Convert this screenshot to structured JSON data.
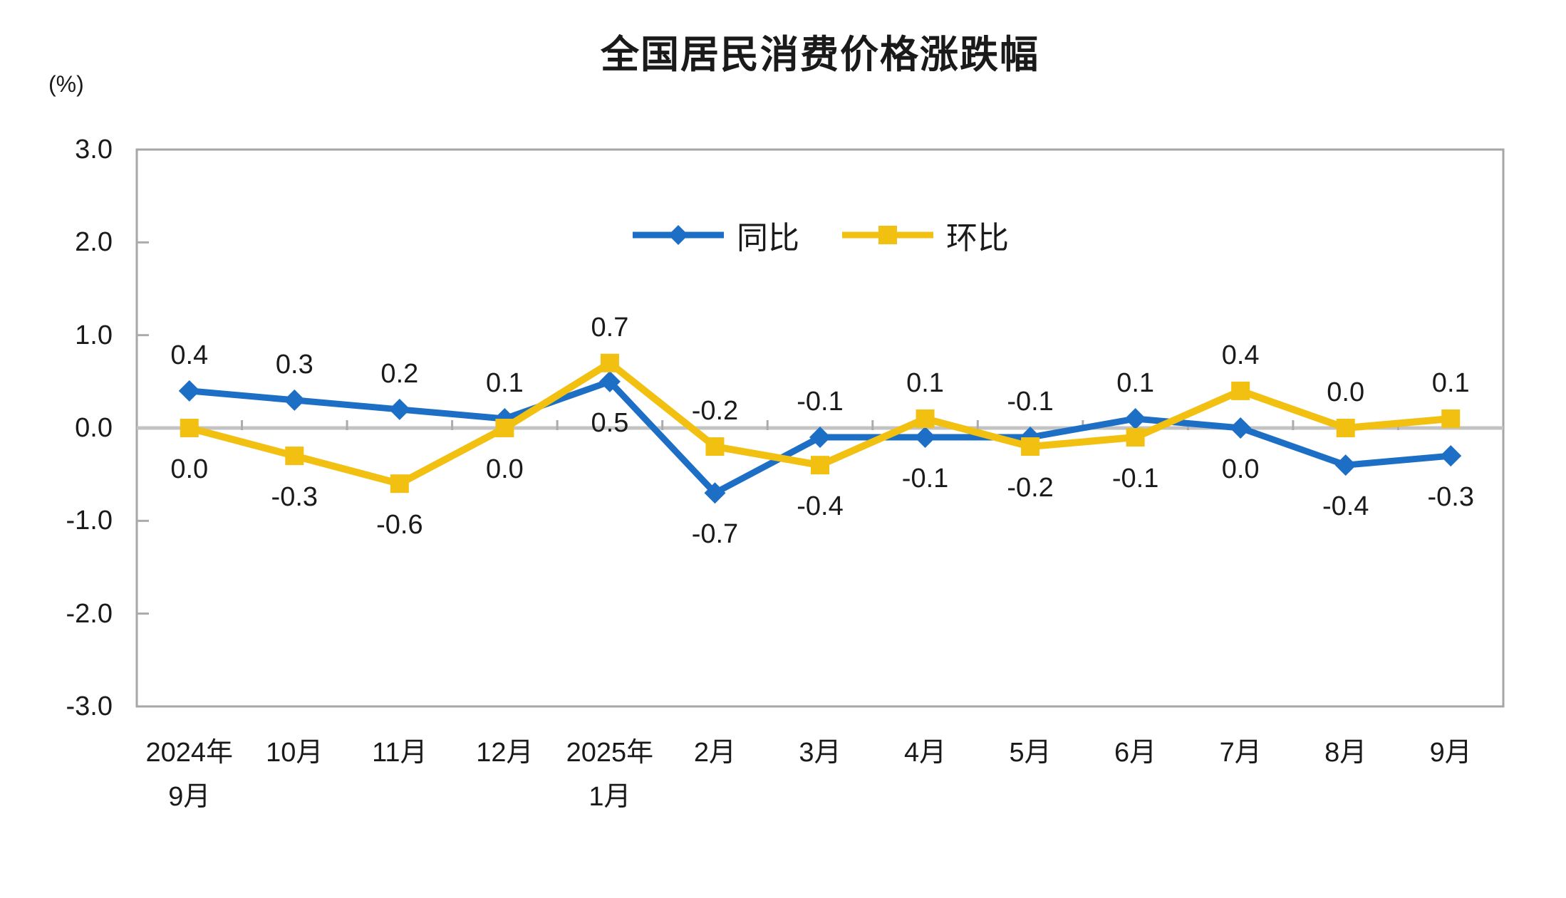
{
  "title": "全国居民消费价格涨跌幅",
  "unit_label": "(%)",
  "colors": {
    "tongbi_blue": "#1C6FC5",
    "huanbi_yellow": "#F2C011",
    "plot_border": "#A6A6A6",
    "zero_line": "#C3C3C3",
    "tick": "#ABABAB",
    "text": "#1A1A1A"
  },
  "legend": [
    {
      "label": "同比",
      "marker": "diamond"
    },
    {
      "label": "环比",
      "marker": "square"
    }
  ],
  "chart_data": {
    "type": "line",
    "title": "全国居民消费价格涨跌幅",
    "ylabel": "(%)",
    "xlabel": "",
    "ylim": [
      -3.0,
      3.0
    ],
    "y_ticks": [
      "3.0",
      "2.0",
      "1.0",
      "0.0",
      "-1.0",
      "-2.0",
      "-3.0"
    ],
    "grid": false,
    "legend_position": "top-center-inside",
    "categories": [
      "2024年9月",
      "10月",
      "11月",
      "12月",
      "2025年1月",
      "2月",
      "3月",
      "4月",
      "5月",
      "6月",
      "7月",
      "8月",
      "9月"
    ],
    "category_label_lines": [
      [
        "2024年",
        "9月"
      ],
      [
        "10月"
      ],
      [
        "11月"
      ],
      [
        "12月"
      ],
      [
        "2025年",
        "1月"
      ],
      [
        "2月"
      ],
      [
        "3月"
      ],
      [
        "4月"
      ],
      [
        "5月"
      ],
      [
        "6月"
      ],
      [
        "7月"
      ],
      [
        "8月"
      ],
      [
        "9月"
      ]
    ],
    "series": [
      {
        "name": "同比",
        "marker": "diamond",
        "color": "#1C6FC5",
        "values": [
          0.4,
          0.3,
          0.2,
          0.1,
          0.5,
          -0.7,
          -0.1,
          -0.1,
          -0.1,
          0.1,
          0.0,
          -0.4,
          -0.3
        ]
      },
      {
        "name": "环比",
        "marker": "square",
        "color": "#F2C011",
        "values": [
          0.0,
          -0.3,
          -0.6,
          0.0,
          0.7,
          -0.2,
          -0.4,
          0.1,
          -0.2,
          -0.1,
          0.4,
          0.0,
          0.1
        ]
      }
    ]
  }
}
